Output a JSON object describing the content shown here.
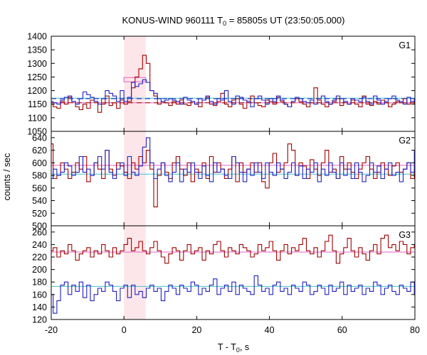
{
  "chart_data": {
    "type": "line",
    "title": "KONUS-WIND 960111 T",
    "title_sub": "0",
    "title_rest": " = 85805s UT (23:50:05.000)",
    "xlabel": "T - T",
    "xlabel_sub": "0",
    "xlabel_rest": ", s",
    "ylabel": "counts / sec",
    "xlim": [
      -20,
      80
    ],
    "xticks": [
      "-20",
      "0",
      "20",
      "40",
      "60",
      "80"
    ],
    "xtick_values": [
      -20,
      0,
      20,
      40,
      60,
      80
    ],
    "bin_width": 1.024,
    "bin_start": -20.5,
    "highlight_interval": [
      0,
      6
    ],
    "highlight_color": "#fde6e9",
    "colors": {
      "red_series": "#a00000",
      "blue_series": "#2020c0",
      "red_background": "#e060c0",
      "blue_background": "#40c0d0",
      "red_dashed": "#a00000",
      "blue_dashed": "#2020c0"
    },
    "panels": [
      {
        "label": "G1",
        "ylim": [
          1050,
          1400
        ],
        "yticks": [
          "1050",
          "1100",
          "1150",
          "1200",
          "1250",
          "1300",
          "1350",
          "1400"
        ],
        "ytick_values": [
          1050,
          1100,
          1150,
          1200,
          1250,
          1300,
          1350,
          1400
        ],
        "background_red": 1155,
        "background_blue": 1172,
        "dashed_red": 1155,
        "dashed_blue": 1170,
        "peak_box_red": 1248,
        "peak_box_blue": 1240,
        "red_values": [
          1150,
          1140,
          1135,
          1160,
          1150,
          1175,
          1160,
          1140,
          1130,
          1150,
          1135,
          1165,
          1160,
          1120,
          1150,
          1180,
          1145,
          1155,
          1135,
          1165,
          1150,
          1160,
          1210,
          1250,
          1280,
          1330,
          1300,
          1200,
          1180,
          1150,
          1160,
          1155,
          1145,
          1160,
          1150,
          1165,
          1150,
          1145,
          1160,
          1150,
          1140,
          1165,
          1175,
          1150,
          1145,
          1160,
          1190,
          1150,
          1140,
          1165,
          1170,
          1150,
          1135,
          1160,
          1180,
          1155,
          1145,
          1140,
          1165,
          1160,
          1150,
          1175,
          1160,
          1150,
          1140,
          1160,
          1170,
          1160,
          1150,
          1140,
          1155,
          1210,
          1165,
          1150,
          1140,
          1150,
          1160,
          1170,
          1145,
          1160,
          1150,
          1165,
          1150,
          1140,
          1180,
          1150,
          1145,
          1160,
          1150,
          1165,
          1155,
          1140,
          1150,
          1160,
          1155,
          1170,
          1150,
          1160,
          1150,
          1210
        ],
        "blue_values": [
          1160,
          1155,
          1150,
          1165,
          1175,
          1180,
          1160,
          1150,
          1170,
          1195,
          1185,
          1175,
          1160,
          1150,
          1170,
          1200,
          1190,
          1180,
          1160,
          1200,
          1160,
          1175,
          1230,
          1215,
          1225,
          1240,
          1230,
          1200,
          1190,
          1170,
          1160,
          1165,
          1170,
          1165,
          1160,
          1150,
          1175,
          1165,
          1160,
          1150,
          1170,
          1165,
          1180,
          1160,
          1150,
          1170,
          1165,
          1200,
          1160,
          1150,
          1180,
          1175,
          1165,
          1160,
          1140,
          1170,
          1180,
          1165,
          1150,
          1170,
          1160,
          1180,
          1165,
          1150,
          1140,
          1160,
          1175,
          1170,
          1160,
          1155,
          1165,
          1150,
          1170,
          1180,
          1160,
          1150,
          1165,
          1180,
          1170,
          1160,
          1150,
          1170,
          1165,
          1160,
          1175,
          1160,
          1150,
          1180,
          1165,
          1150,
          1160,
          1170,
          1180,
          1165,
          1160,
          1150,
          1175,
          1160,
          1170,
          1185
        ]
      },
      {
        "label": "G2",
        "ylim": [
          500,
          650
        ],
        "yticks": [
          "500",
          "520",
          "540",
          "560",
          "580",
          "600",
          "620",
          "640"
        ],
        "ytick_values": [
          500,
          520,
          540,
          560,
          580,
          600,
          620,
          640
        ],
        "background_red": 596,
        "background_blue": 582,
        "red_values": [
          630,
          575,
          580,
          600,
          590,
          575,
          585,
          600,
          590,
          610,
          570,
          580,
          600,
          590,
          575,
          620,
          590,
          580,
          600,
          595,
          585,
          575,
          600,
          590,
          610,
          600,
          620,
          590,
          530,
          580,
          600,
          585,
          575,
          600,
          610,
          590,
          580,
          600,
          570,
          590,
          585,
          600,
          575,
          610,
          585,
          600,
          590,
          575,
          590,
          610,
          570,
          600,
          585,
          590,
          600,
          585,
          600,
          570,
          560,
          600,
          615,
          585,
          590,
          600,
          630,
          620,
          580,
          600,
          595,
          575,
          605,
          590,
          580,
          600,
          620,
          585,
          590,
          575,
          610,
          590,
          600,
          585,
          575,
          590,
          600,
          610,
          590,
          575,
          585,
          600,
          590,
          580,
          595,
          600,
          585,
          590,
          600,
          575,
          590,
          600
        ],
        "blue_values": [
          575,
          590,
          580,
          585,
          600,
          595,
          580,
          585,
          610,
          585,
          590,
          580,
          600,
          610,
          590,
          620,
          585,
          575,
          590,
          600,
          580,
          610,
          585,
          580,
          595,
          625,
          640,
          600,
          575,
          590,
          600,
          580,
          570,
          585,
          600,
          570,
          590,
          585,
          600,
          585,
          575,
          595,
          580,
          570,
          600,
          585,
          590,
          580,
          575,
          610,
          600,
          585,
          570,
          590,
          580,
          600,
          585,
          575,
          600,
          585,
          580,
          600,
          590,
          575,
          585,
          600,
          580,
          595,
          575,
          590,
          585,
          600,
          570,
          590,
          580,
          600,
          585,
          575,
          600,
          580,
          590,
          575,
          600,
          585,
          570,
          580,
          600,
          585,
          595,
          575,
          590,
          600,
          580,
          585,
          570,
          590,
          600,
          585,
          620,
          590
        ]
      },
      {
        "label": "G3",
        "ylim": [
          120,
          270
        ],
        "yticks": [
          "120",
          "140",
          "160",
          "180",
          "200",
          "220",
          "240",
          "260"
        ],
        "ytick_values": [
          120,
          140,
          160,
          180,
          200,
          220,
          240,
          260
        ],
        "background_red": 228,
        "background_blue": 173,
        "red_values": [
          230,
          235,
          220,
          230,
          225,
          240,
          230,
          215,
          225,
          230,
          235,
          220,
          230,
          225,
          240,
          230,
          220,
          235,
          225,
          230,
          240,
          250,
          230,
          235,
          245,
          230,
          225,
          235,
          245,
          230,
          220,
          210,
          225,
          235,
          230,
          215,
          230,
          240,
          225,
          230,
          235,
          215,
          230,
          225,
          240,
          245,
          230,
          220,
          235,
          230,
          225,
          240,
          235,
          230,
          220,
          225,
          240,
          230,
          235,
          245,
          230,
          215,
          230,
          240,
          225,
          235,
          230,
          240,
          250,
          230,
          225,
          235,
          220,
          230,
          245,
          255,
          230,
          210,
          225,
          235,
          250,
          230,
          220,
          235,
          225,
          215,
          230,
          240,
          225,
          250,
          255,
          235,
          240,
          230,
          245,
          240,
          225,
          235,
          240,
          230
        ],
        "blue_values": [
          160,
          130,
          150,
          175,
          180,
          160,
          175,
          165,
          180,
          155,
          175,
          150,
          160,
          170,
          165,
          180,
          175,
          165,
          150,
          170,
          175,
          155,
          175,
          160,
          165,
          155,
          170,
          175,
          165,
          170,
          150,
          165,
          175,
          170,
          160,
          175,
          170,
          165,
          180,
          175,
          160,
          170,
          165,
          175,
          185,
          160,
          170,
          175,
          165,
          180,
          160,
          175,
          170,
          165,
          160,
          190,
          175,
          165,
          170,
          160,
          175,
          180,
          165,
          170,
          160,
          175,
          170,
          165,
          180,
          175,
          160,
          165,
          175,
          170,
          160,
          175,
          165,
          170,
          180,
          160,
          175,
          165,
          170,
          175,
          160,
          170,
          165,
          180,
          175,
          160,
          170,
          175,
          165,
          160,
          175,
          170,
          165,
          180,
          160,
          170
        ]
      }
    ]
  }
}
